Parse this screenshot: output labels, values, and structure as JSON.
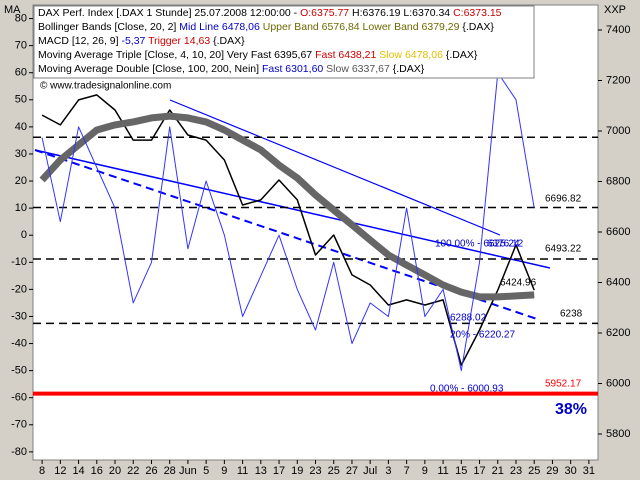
{
  "chart_data": {
    "type": "line",
    "left_axis_label": "MA",
    "right_axis_label": "XXP",
    "watermark": "© www.tradesignalonline.com",
    "legend": [
      [
        {
          "text": "DAX Perf. Index [.DAX  1 Stunde] 25.07.2008 12:00:00 - ",
          "color": "#000000"
        },
        {
          "text": "O:6375.77",
          "color": "#cc0000"
        },
        {
          "text": " H:6376.19 L:6370.34 ",
          "color": "#000000"
        },
        {
          "text": "C:6373.15",
          "color": "#cc0000"
        }
      ],
      [
        {
          "text": "Bollinger Bands [Close, 20, 2] ",
          "color": "#000000"
        },
        {
          "text": "Mid Line 6478,06",
          "color": "#0000cc"
        },
        {
          "text": " Upper Band 6576,84 Lower Band 6379,29",
          "color": "#6b6b00"
        },
        {
          "text": " {.DAX}",
          "color": "#000000"
        }
      ],
      [
        {
          "text": "MACD [12, 26, 9] ",
          "color": "#000000"
        },
        {
          "text": "-5,37",
          "color": "#0000cc"
        },
        {
          "text": " Trigger 14,63",
          "color": "#cc0000"
        },
        {
          "text": " {.DAX}",
          "color": "#000000"
        }
      ],
      [
        {
          "text": "Moving Average Triple [Close, 4, 10, 20] Very Fast 6395,67 ",
          "color": "#000000"
        },
        {
          "text": "Fast 6438,21",
          "color": "#cc0000"
        },
        {
          "text": " Slow 6478,06",
          "color": "#e0c000"
        },
        {
          "text": " {.DAX}",
          "color": "#000000"
        }
      ],
      [
        {
          "text": "Moving Average Double [Close, 100, 200, Nein] ",
          "color": "#000000"
        },
        {
          "text": "Fast 6301,60",
          "color": "#0000cc"
        },
        {
          "text": " Slow 6337,67",
          "color": "#555555"
        },
        {
          "text": " {.DAX}",
          "color": "#000000"
        }
      ]
    ],
    "categories": [
      "8",
      "12",
      "14",
      "16",
      "20",
      "22",
      "26",
      "28",
      "Jun",
      "5",
      "9",
      "11",
      "13",
      "17",
      "19",
      "23",
      "25",
      "27",
      "Jul",
      "3",
      "7",
      "9",
      "11",
      "15",
      "17",
      "21",
      "23",
      "25",
      "29",
      "30",
      "31"
    ],
    "ylim": [
      5697,
      7499
    ],
    "yticks": [
      5800,
      6000,
      6200,
      6400,
      6600,
      6800,
      7000,
      7200,
      7400
    ],
    "y2lim": [
      -83,
      85
    ],
    "y2ticks": [
      -80,
      -70,
      -60,
      -50,
      -40,
      -30,
      -20,
      -10,
      0,
      10,
      20,
      30,
      40,
      50,
      60,
      70,
      80
    ],
    "series": [
      {
        "name": "Close",
        "color": "#000000",
        "width": 1.5,
        "values": [
          7063,
          7024,
          7123,
          7143,
          7083,
          6964,
          6964,
          7083,
          6984,
          6964,
          6885,
          6707,
          6727,
          6806,
          6727,
          6509,
          6588,
          6430,
          6390,
          6311,
          6331,
          6311,
          6331,
          6073,
          6212,
          6370,
          6549,
          6370,
          null,
          null,
          null
        ]
      },
      {
        "name": "Slow",
        "color": "#666666",
        "width": 7,
        "values": [
          6806,
          6885,
          6945,
          7004,
          7024,
          7036,
          7052,
          7059,
          7052,
          7036,
          7004,
          6964,
          6925,
          6865,
          6814,
          6747,
          6687,
          6628,
          6568,
          6509,
          6469,
          6430,
          6390,
          6362,
          6343,
          6343,
          6347,
          6351,
          null,
          null,
          null
        ]
      },
      {
        "name": "MACD",
        "color": "#3333ff",
        "width": 1,
        "axis": "y2",
        "values": [
          36,
          5,
          40,
          25,
          10,
          -25,
          -10,
          40,
          -5,
          20,
          0,
          -30,
          -15,
          0,
          -20,
          -35,
          -10,
          -40,
          -25,
          -30,
          10,
          -30,
          -20,
          -50,
          -10,
          60,
          50,
          10,
          null,
          null,
          null
        ]
      }
    ],
    "levels": [
      {
        "value": 6975,
        "color": "#000000",
        "dashed": true
      },
      {
        "value": 6696.82,
        "color": "#000000",
        "dashed": true
      },
      {
        "value": 6493.22,
        "color": "#000000",
        "dashed": true
      },
      {
        "value": 6238,
        "color": "#000000",
        "dashed": true
      },
      {
        "value": 5960,
        "color": "#ff0000",
        "dashed": false
      }
    ],
    "annotations": [
      {
        "text": "6696.82",
        "color": "#000000"
      },
      {
        "text": "6493.22",
        "color": "#000000"
      },
      {
        "text": "6424.96",
        "color": "#000000"
      },
      {
        "text": "6238",
        "color": "#000000"
      },
      {
        "text": "5952.17",
        "color": "#ff0000"
      },
      {
        "text": "38%",
        "color": "#0000cc"
      },
      {
        "text": "100.00% - 6625.24",
        "color": "#0000cc"
      },
      {
        "text": "6376.12",
        "color": "#0000cc"
      },
      {
        "text": "6288.02",
        "color": "#0000cc"
      },
      {
        "text": "20% - 6220.27",
        "color": "#0000cc"
      },
      {
        "text": "0.00% - 6000.93",
        "color": "#0000cc"
      }
    ],
    "grid": false
  }
}
